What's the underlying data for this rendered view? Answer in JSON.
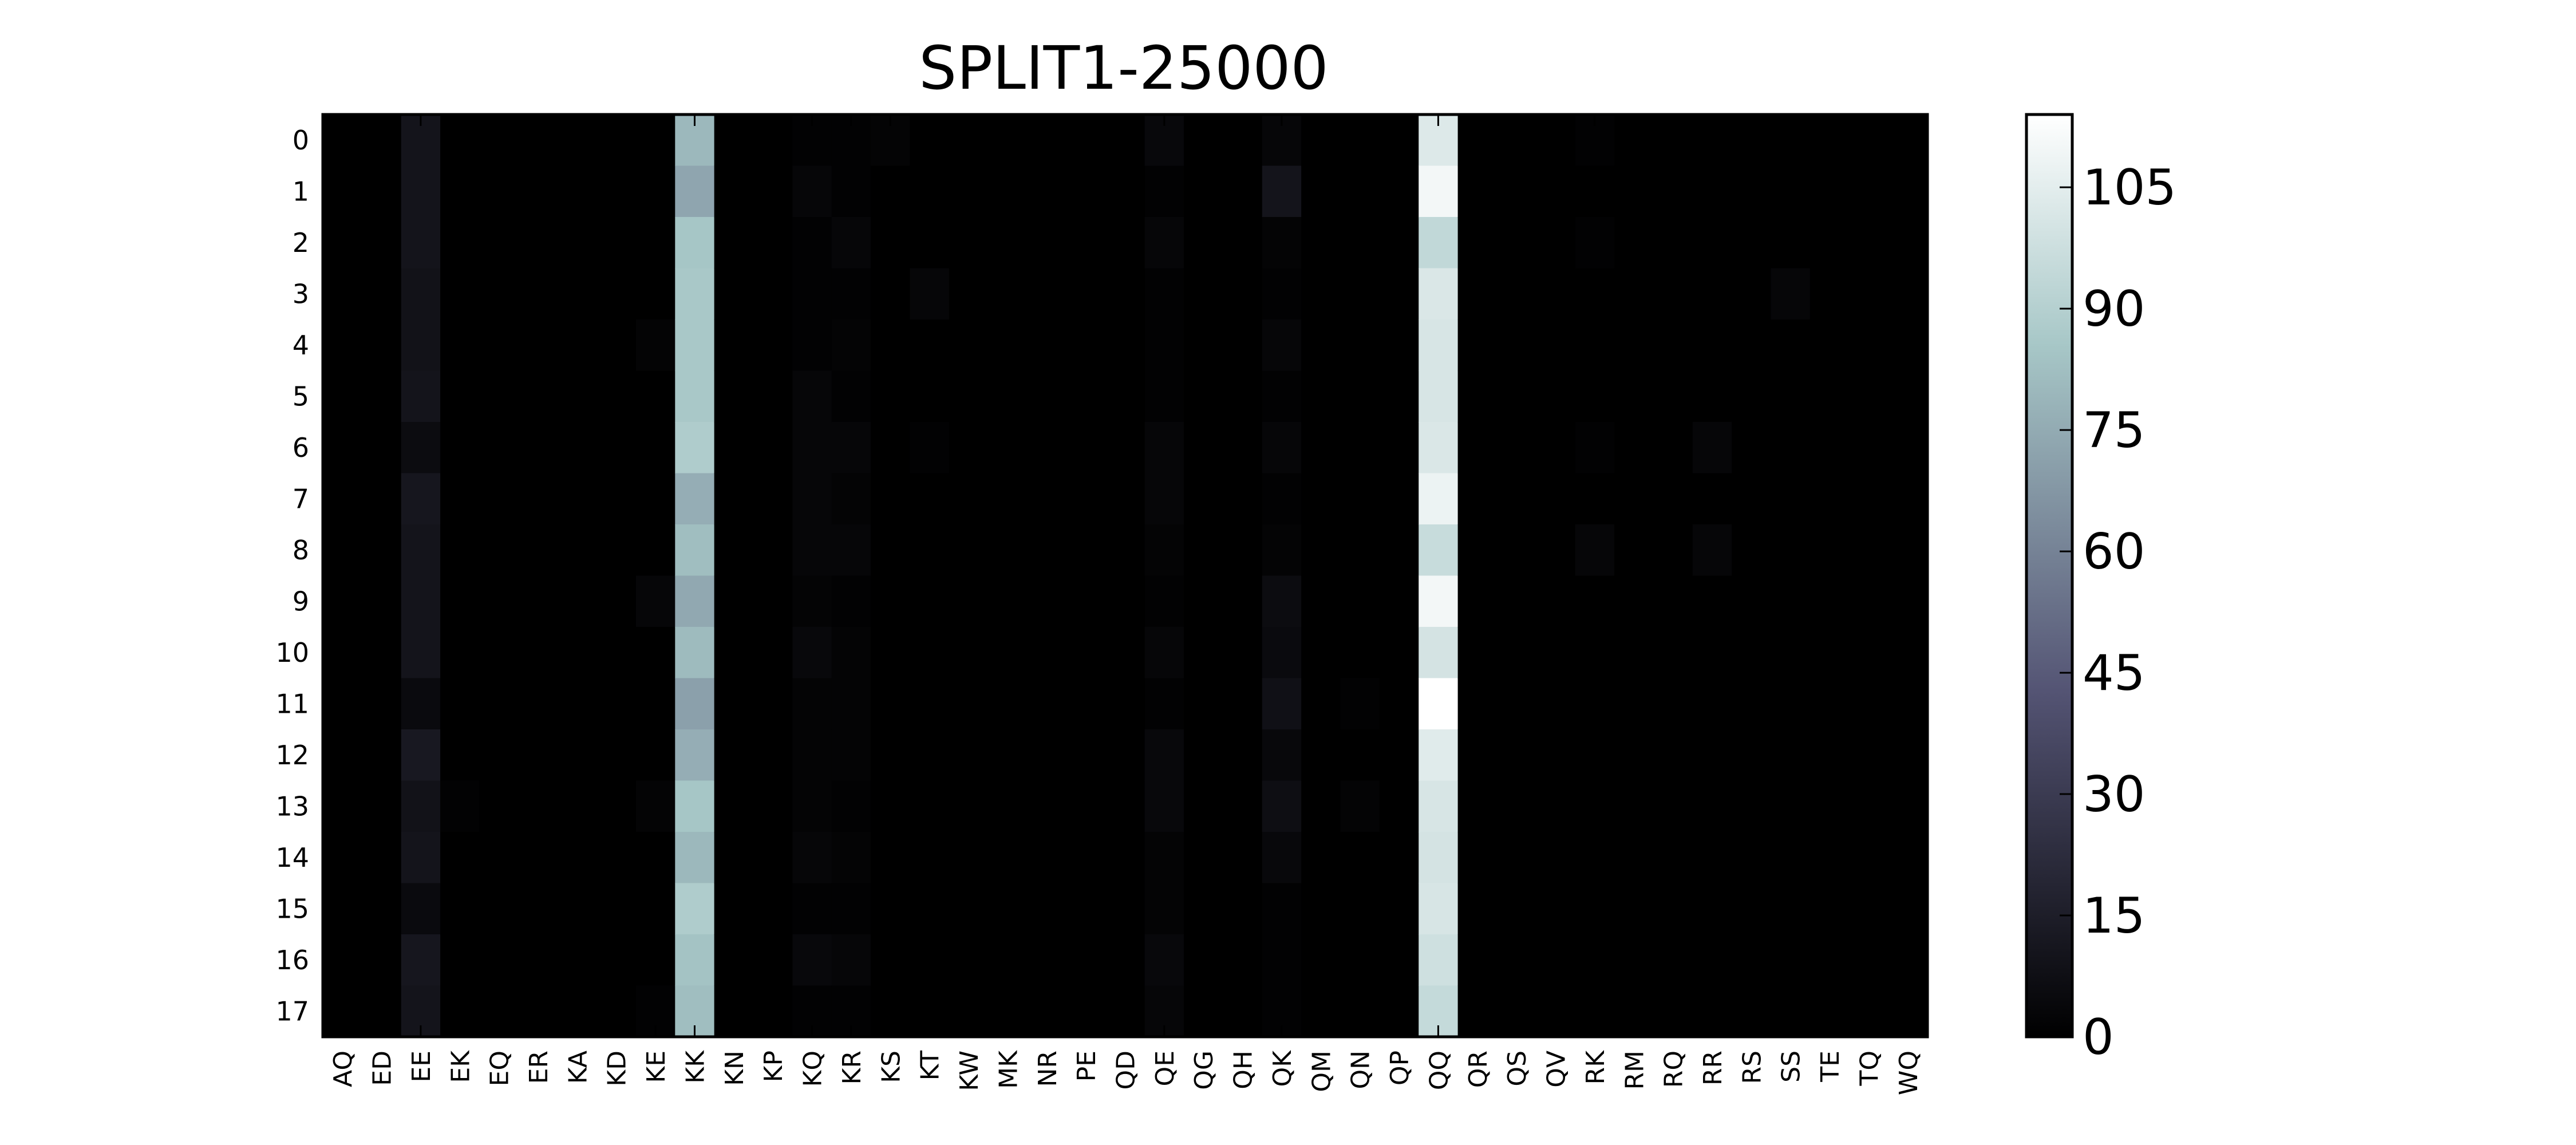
{
  "chart_data": {
    "type": "heatmap",
    "title": "SPLIT1-25000",
    "xlabel": "",
    "ylabel": "",
    "x_categories": [
      "AQ",
      "ED",
      "EE",
      "EK",
      "EQ",
      "ER",
      "KA",
      "KD",
      "KE",
      "KK",
      "KN",
      "KP",
      "KQ",
      "KR",
      "KS",
      "KT",
      "KW",
      "MK",
      "NR",
      "PE",
      "QD",
      "QE",
      "QG",
      "QH",
      "QK",
      "QM",
      "QN",
      "QP",
      "QQ",
      "QR",
      "QS",
      "QV",
      "RK",
      "RM",
      "RQ",
      "RR",
      "RS",
      "SS",
      "TE",
      "TQ",
      "WQ"
    ],
    "y_categories": [
      "0",
      "1",
      "2",
      "3",
      "4",
      "5",
      "6",
      "7",
      "8",
      "9",
      "10",
      "11",
      "12",
      "13",
      "14",
      "15",
      "16",
      "17"
    ],
    "colorbar": {
      "min": 0,
      "max": 114,
      "ticks": [
        0,
        15,
        30,
        45,
        60,
        75,
        90,
        105
      ],
      "colormap": "bone"
    },
    "grid": false,
    "base_value": 0,
    "columns": {
      "EE": [
        10,
        10,
        10,
        9,
        9,
        10,
        6,
        11,
        10,
        10,
        10,
        5,
        12,
        9,
        10,
        5,
        11,
        10
      ],
      "KK": [
        80,
        73,
        85,
        86,
        86,
        86,
        88,
        76,
        82,
        74,
        81,
        71,
        76,
        85,
        80,
        88,
        84,
        82
      ],
      "QQ": [
        103,
        110,
        94,
        102,
        101,
        101,
        102,
        108,
        96,
        110,
        100,
        114,
        104,
        101,
        100,
        101,
        98,
        95
      ],
      "QK": [
        3,
        10,
        2,
        1,
        3,
        1,
        3,
        1,
        2,
        6,
        5,
        8,
        4,
        7,
        4,
        1,
        1,
        1
      ],
      "QE": [
        4,
        1,
        3,
        1,
        1,
        1,
        3,
        3,
        2,
        1,
        3,
        1,
        4,
        4,
        2,
        2,
        4,
        3
      ],
      "KQ": [
        1,
        3,
        1,
        1,
        1,
        3,
        3,
        3,
        3,
        2,
        4,
        2,
        2,
        2,
        3,
        1,
        4,
        1
      ],
      "KR": [
        1,
        1,
        3,
        1,
        2,
        1,
        3,
        2,
        3,
        1,
        2,
        2,
        2,
        1,
        2,
        1,
        3,
        1
      ],
      "KE": [
        0,
        0,
        0,
        0,
        2,
        0,
        0,
        0,
        0,
        3,
        0,
        0,
        0,
        2,
        0,
        0,
        0,
        1
      ],
      "KS": [
        2,
        0,
        0,
        0,
        0,
        0,
        0,
        0,
        0,
        0,
        0,
        0,
        0,
        0,
        0,
        0,
        0,
        0
      ],
      "KT": [
        0,
        0,
        0,
        3,
        0,
        0,
        1,
        0,
        0,
        0,
        0,
        0,
        0,
        0,
        0,
        0,
        0,
        0
      ],
      "RK": [
        1,
        0,
        1,
        0,
        0,
        0,
        1,
        0,
        3,
        0,
        0,
        0,
        0,
        0,
        0,
        0,
        0,
        0
      ],
      "RR": [
        0,
        0,
        0,
        0,
        0,
        0,
        3,
        0,
        3,
        0,
        0,
        0,
        0,
        0,
        0,
        0,
        0,
        0
      ],
      "SS": [
        0,
        0,
        0,
        3,
        0,
        0,
        0,
        0,
        0,
        0,
        0,
        0,
        0,
        0,
        0,
        0,
        0,
        0
      ],
      "QN": [
        0,
        0,
        0,
        0,
        0,
        0,
        0,
        0,
        0,
        0,
        0,
        1,
        0,
        2,
        0,
        0,
        0,
        0
      ],
      "EK": [
        0,
        0,
        0,
        0,
        0,
        0,
        0,
        0,
        0,
        0,
        0,
        0,
        0,
        1,
        0,
        0,
        0,
        0
      ]
    }
  }
}
